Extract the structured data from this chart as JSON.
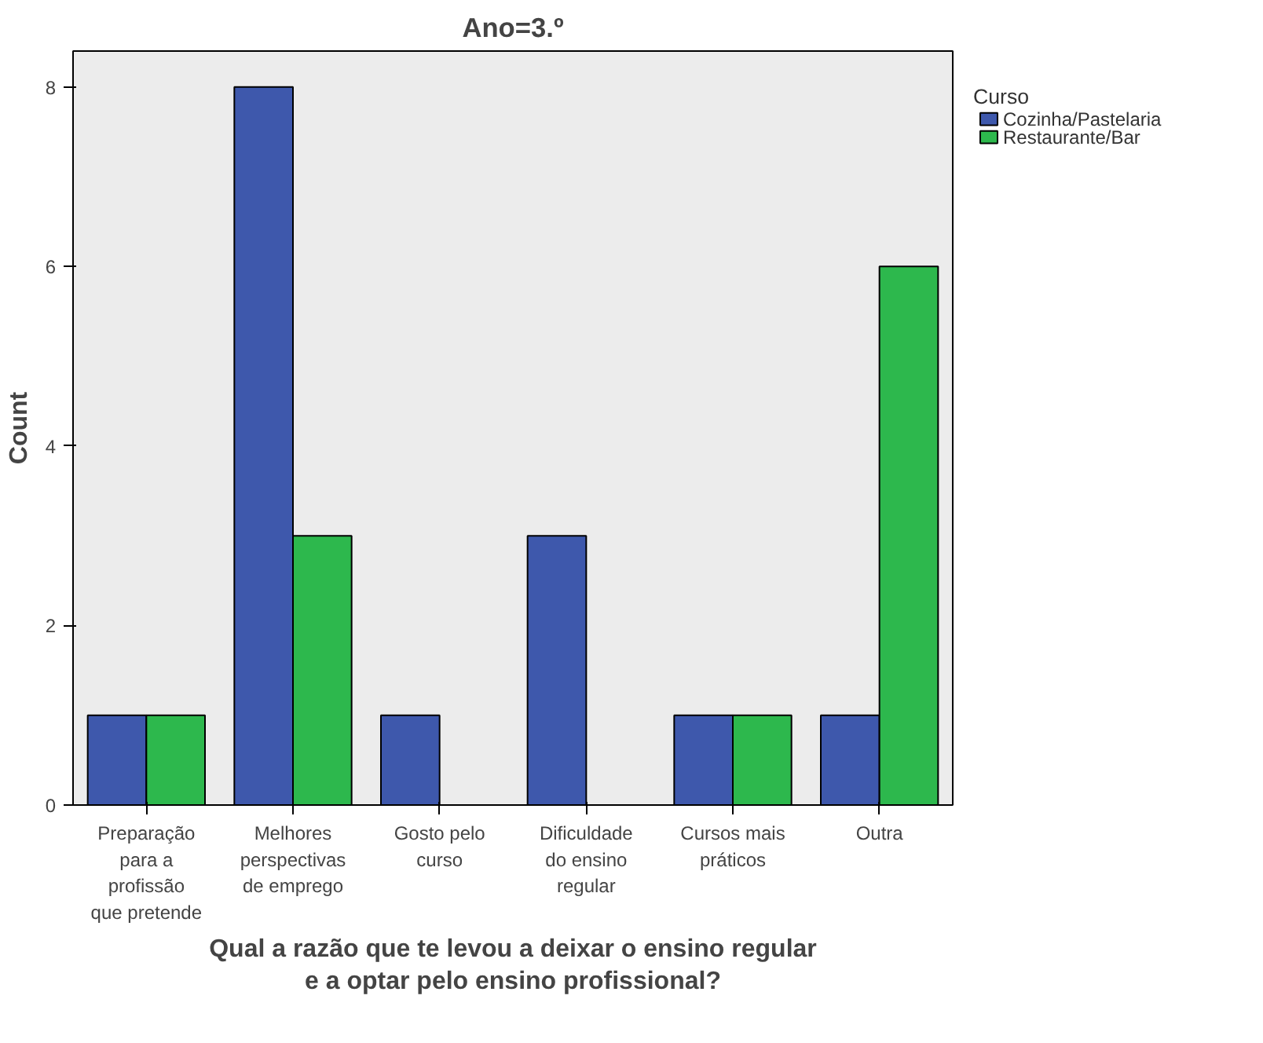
{
  "chart_data": {
    "type": "bar",
    "title": "Ano=3.º",
    "xlabel": "Qual a razão que te levou a deixar o ensino regular e a optar pelo ensino profissional?",
    "ylabel": "Count",
    "legend_title": "Curso",
    "categories": [
      "Preparação para a profissão que pretende",
      "Melhores perspectivas de emprego",
      "Gosto pelo curso",
      "Dificuldade do ensino regular",
      "Cursos mais práticos",
      "Outra"
    ],
    "series": [
      {
        "name": "Cozinha/Pastelaria",
        "color": "#3e58ac",
        "values": [
          1,
          8,
          1,
          3,
          1,
          1
        ]
      },
      {
        "name": "Restaurante/Bar",
        "color": "#2db84d",
        "values": [
          1,
          3,
          null,
          null,
          1,
          6
        ]
      }
    ],
    "ylim": [
      0,
      8.4
    ],
    "yticks": [
      0,
      2,
      4,
      6,
      8
    ],
    "grid": false,
    "legend": "right"
  }
}
